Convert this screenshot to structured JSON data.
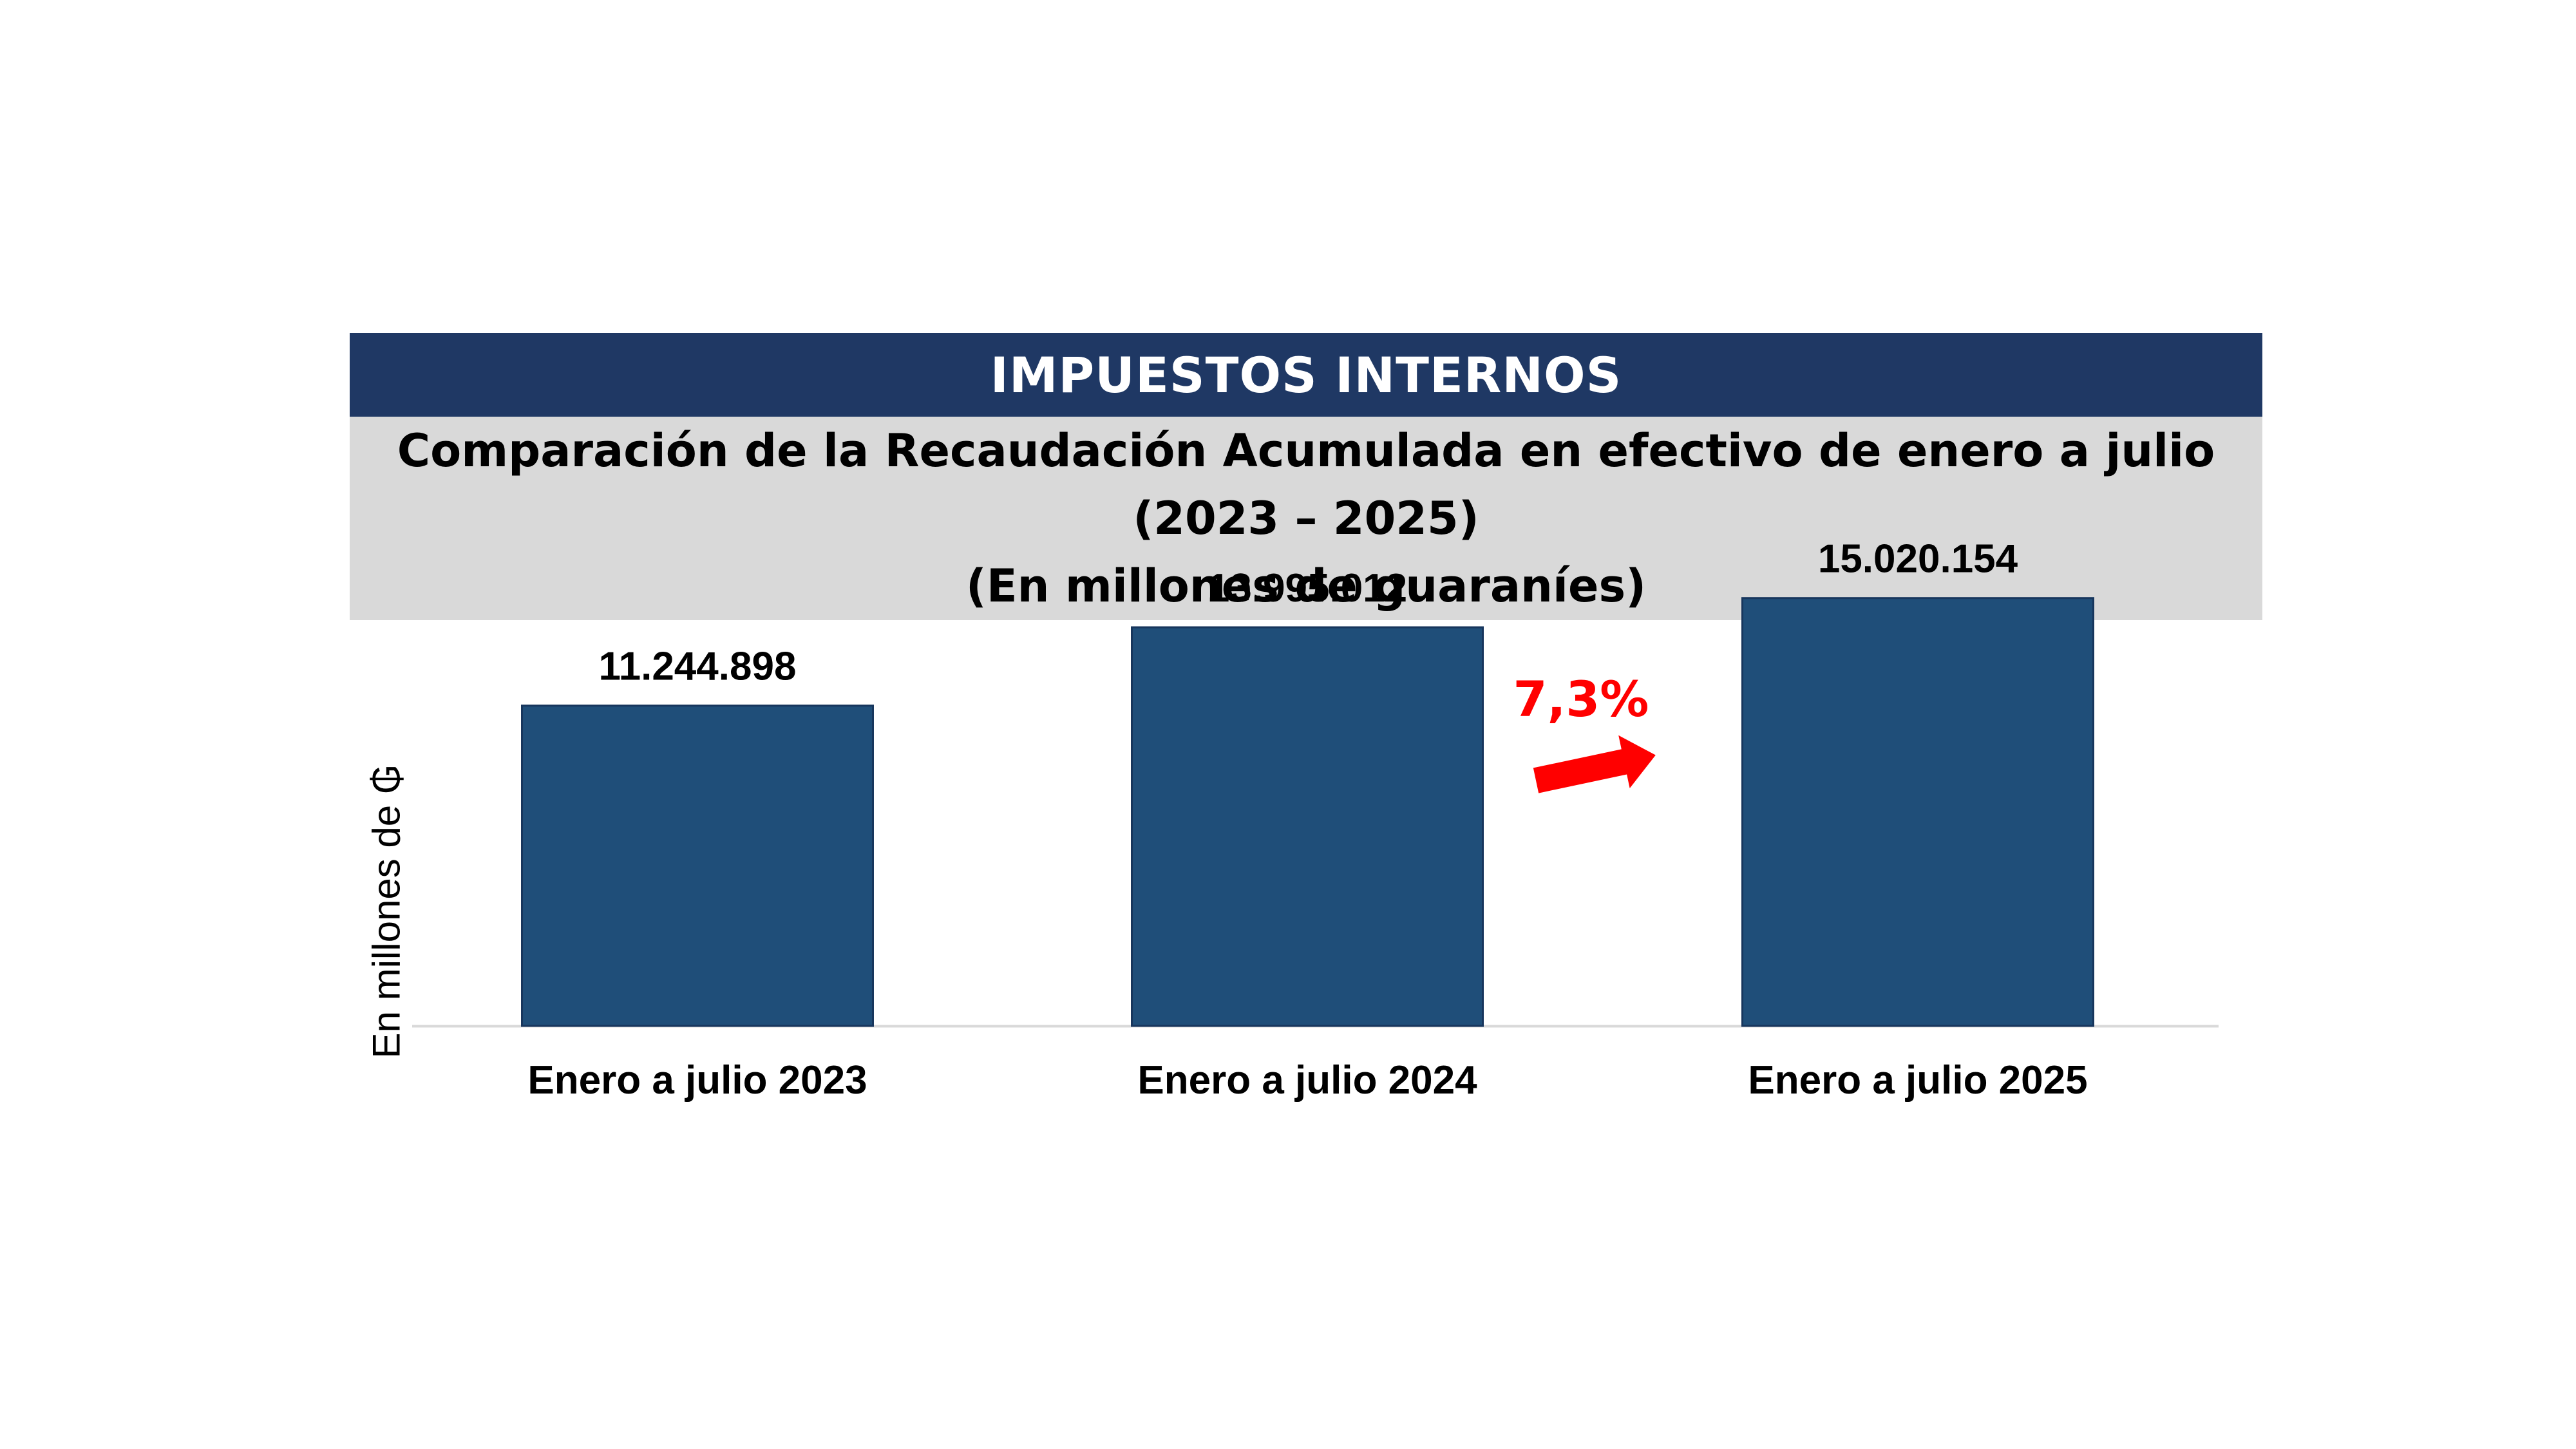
{
  "header": {
    "title": "IMPUESTOS INTERNOS",
    "subtitle_line1": "Comparación de la Recaudación Acumulada en efectivo de enero a julio",
    "subtitle_line2": "(2023 – 2025)",
    "subtitle_line3": "(En millones de guaraníes)"
  },
  "colors": {
    "header_bg": "#1f3864",
    "subtitle_bg": "#d9d9d9",
    "bar": "#1f4e79",
    "growth": "#ff0000"
  },
  "chart_data": {
    "type": "bar",
    "categories": [
      "Enero a julio 2023",
      "Enero a julio 2024",
      "Enero a julio 2025"
    ],
    "values": [
      11244898,
      13995012,
      15020154
    ],
    "data_labels": [
      "11.244.898",
      "13.995.012",
      "15.020.154"
    ],
    "ylabel": "En millones de ₲",
    "ylim": [
      0,
      22000000
    ],
    "grid": false,
    "annotation": {
      "text": "7,3%",
      "between": [
        "Enero a julio 2024",
        "Enero a julio 2025"
      ],
      "icon": "red-arrow-icon"
    }
  }
}
